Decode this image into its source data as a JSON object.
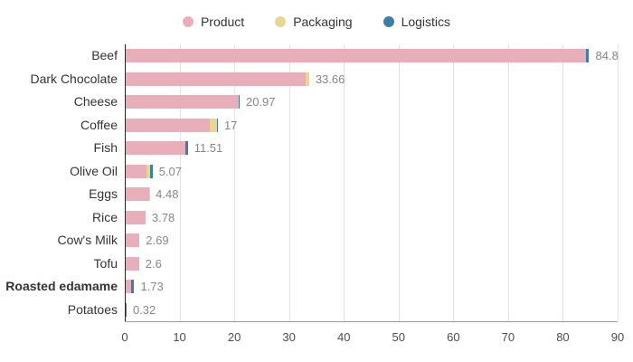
{
  "legend": {
    "items": [
      {
        "label": "Product",
        "color": "#E8AFBB"
      },
      {
        "label": "Packaging",
        "color": "#EAD592"
      },
      {
        "label": "Logistics",
        "color": "#3D7EA6"
      }
    ]
  },
  "chart_data": {
    "type": "bar",
    "orientation": "horizontal",
    "stacked": true,
    "title": "",
    "xlabel": "",
    "ylabel": "",
    "xlim": [
      0,
      90
    ],
    "x_ticks": [
      0,
      10,
      20,
      30,
      40,
      50,
      60,
      70,
      80,
      90
    ],
    "grid": true,
    "legend_position": "top",
    "categories": [
      "Beef",
      "Dark Chocolate",
      "Cheese",
      "Coffee",
      "Fish",
      "Olive Oil",
      "Eggs",
      "Rice",
      "Cow's Milk",
      "Tofu",
      "Roasted edamame",
      "Potatoes"
    ],
    "bold_categories": [
      "Roasted edamame"
    ],
    "series": [
      {
        "name": "Product",
        "color": "#E8AFBB",
        "values": [
          84.15,
          33.06,
          20.77,
          15.6,
          11.0,
          4.0,
          4.38,
          3.78,
          2.69,
          2.6,
          1.13,
          0.17
        ]
      },
      {
        "name": "Packaging",
        "color": "#EAD592",
        "values": [
          0.15,
          0.6,
          0,
          1.2,
          0,
          0.57,
          0.1,
          0,
          0,
          0,
          0,
          0
        ]
      },
      {
        "name": "Logistics",
        "color": "#3D7EA6",
        "values": [
          0.5,
          0,
          0.2,
          0.2,
          0.51,
          0.5,
          0,
          0,
          0,
          0,
          0.6,
          0.15
        ]
      }
    ],
    "totals": [
      "84.8",
      "33.66",
      "20.97",
      "17",
      "11.51",
      "5.07",
      "4.48",
      "3.78",
      "2.69",
      "2.6",
      "1.73",
      "0.32"
    ]
  },
  "colors": {
    "grid": "#e2e2e2",
    "y_axis": "#262626",
    "x_axis": "#9a9a9a",
    "value_label": "#868686",
    "category_label": "#333333",
    "tick_label": "#4d4d4d"
  }
}
